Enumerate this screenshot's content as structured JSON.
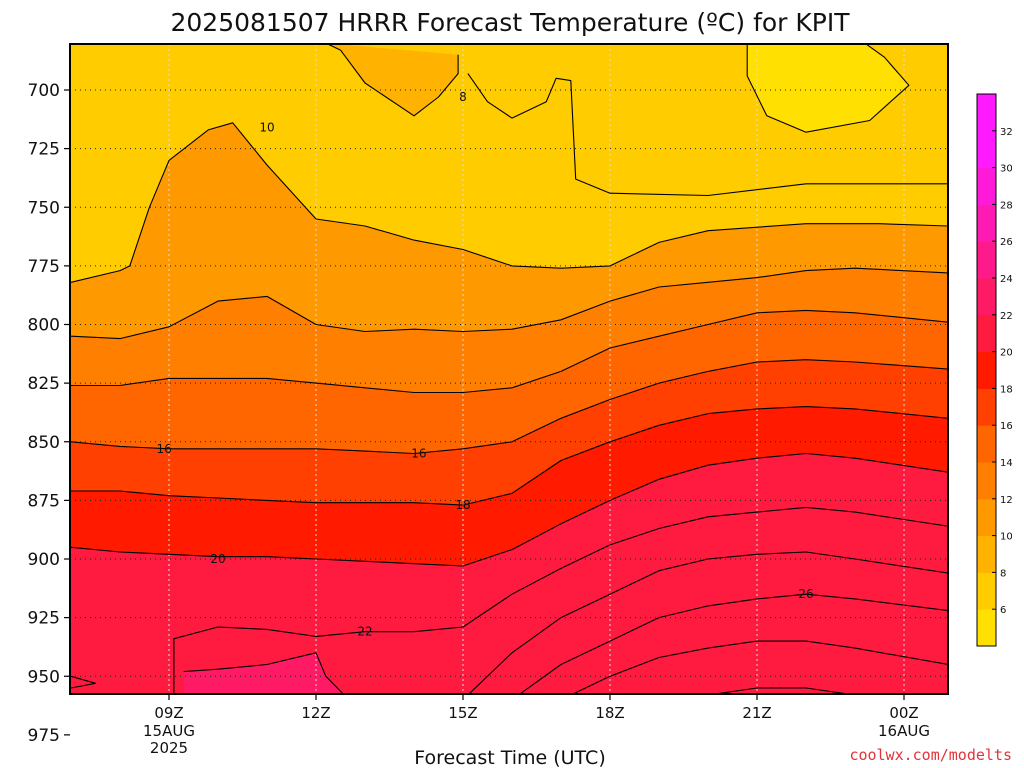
{
  "chart_data": {
    "type": "heatmap",
    "title": "2025081507 HRRR Forecast Temperature (ºC) for KPIT",
    "xlabel": "Forecast Time (UTC)",
    "ylabel": "",
    "y_axis": {
      "orientation": "pressure, decreasing upward",
      "ylim": [
        987,
        680
      ],
      "ticks": [
        700,
        725,
        750,
        775,
        800,
        825,
        850,
        875,
        900,
        925,
        950,
        975
      ]
    },
    "x_axis": {
      "range_hours_from_09Z": [
        -2.0,
        15.9
      ],
      "ticks": [
        {
          "hour": 0,
          "label": "09Z",
          "sub": [
            "15AUG",
            "2025"
          ]
        },
        {
          "hour": 3,
          "label": "12Z",
          "sub": []
        },
        {
          "hour": 6,
          "label": "15Z",
          "sub": []
        },
        {
          "hour": 9,
          "label": "18Z",
          "sub": []
        },
        {
          "hour": 12,
          "label": "21Z",
          "sub": []
        },
        {
          "hour": 15,
          "label": "00Z",
          "sub": [
            "16AUG"
          ]
        }
      ]
    },
    "colorbar": {
      "tick_labels": [
        "6",
        "8",
        "10",
        "12",
        "14",
        "16",
        "18",
        "20",
        "22",
        "24",
        "26",
        "28",
        "30",
        "32"
      ],
      "levels": [
        {
          "min": 4,
          "max": 6,
          "color": "#ffe000"
        },
        {
          "min": 6,
          "max": 8,
          "color": "#ffcc00"
        },
        {
          "min": 8,
          "max": 10,
          "color": "#ffb300"
        },
        {
          "min": 10,
          "max": 12,
          "color": "#ff9900"
        },
        {
          "min": 12,
          "max": 14,
          "color": "#ff7f00"
        },
        {
          "min": 14,
          "max": 16,
          "color": "#ff6600"
        },
        {
          "min": 16,
          "max": 18,
          "color": "#ff4000"
        },
        {
          "min": 18,
          "max": 20,
          "color": "#ff1a00"
        },
        {
          "min": 20,
          "max": 22,
          "color": "#ff1a40"
        },
        {
          "min": 22,
          "max": 24,
          "color": "#ff1a66"
        },
        {
          "min": 24,
          "max": 26,
          "color": "#ff1a8c"
        },
        {
          "min": 26,
          "max": 28,
          "color": "#ff1ab3"
        },
        {
          "min": 28,
          "max": 30,
          "color": "#ff1ad9"
        },
        {
          "min": 30,
          "max": 32,
          "color": "#ff1aff"
        },
        {
          "min": 32,
          "max": 34,
          "color": "#ff1aff"
        }
      ]
    },
    "contour_labels": [
      {
        "value": "10",
        "hour": 2.0,
        "p": 716
      },
      {
        "value": "8",
        "hour": 6.0,
        "p": 703
      },
      {
        "value": "16",
        "hour": -0.1,
        "p": 853
      },
      {
        "value": "16",
        "hour": 5.1,
        "p": 855
      },
      {
        "value": "18",
        "hour": 6.0,
        "p": 877
      },
      {
        "value": "20",
        "hour": 1.0,
        "p": 900
      },
      {
        "value": "22",
        "hour": 4.0,
        "p": 931
      },
      {
        "value": "26",
        "hour": 13.0,
        "p": 915
      },
      {
        "value": "20",
        "hour": 1.0,
        "p": 970
      }
    ],
    "contours": [
      {
        "level": 8,
        "points": [
          [
            5.9,
            685
          ],
          [
            5.9,
            693
          ],
          [
            5.5,
            703
          ],
          [
            5.0,
            711
          ],
          [
            4.0,
            697
          ],
          [
            3.5,
            683
          ],
          [
            3.2,
            680
          ]
        ]
      },
      {
        "level": 8,
        "points": [
          [
            6.1,
            693
          ],
          [
            6.5,
            705
          ],
          [
            7.0,
            712
          ],
          [
            7.7,
            705
          ],
          [
            7.9,
            695
          ],
          [
            8.2,
            696
          ],
          [
            8.3,
            738
          ],
          [
            9.0,
            744
          ],
          [
            11.0,
            745
          ],
          [
            13.0,
            740
          ],
          [
            15.9,
            740
          ]
        ]
      },
      {
        "level": 6,
        "points": [
          [
            11.8,
            680
          ],
          [
            11.8,
            694
          ],
          [
            12.2,
            711
          ],
          [
            13.0,
            718
          ],
          [
            14.3,
            713
          ],
          [
            15.1,
            698
          ],
          [
            14.6,
            686
          ],
          [
            14.2,
            680
          ]
        ]
      },
      {
        "level": 10,
        "points": [
          [
            -2.0,
            782
          ],
          [
            -1.0,
            777
          ],
          [
            -0.8,
            775
          ],
          [
            -0.4,
            750
          ],
          [
            0.0,
            730
          ],
          [
            0.8,
            717
          ],
          [
            1.3,
            714
          ],
          [
            2.0,
            732
          ],
          [
            3.0,
            755
          ],
          [
            4.0,
            758
          ],
          [
            5.0,
            764
          ],
          [
            6.0,
            768
          ],
          [
            7.0,
            775
          ],
          [
            8.0,
            776
          ],
          [
            9.0,
            775
          ],
          [
            10.0,
            765
          ],
          [
            11.0,
            760
          ],
          [
            13.0,
            757
          ],
          [
            14.5,
            757
          ],
          [
            15.9,
            758
          ]
        ]
      },
      {
        "level": 12,
        "points": [
          [
            -2.0,
            805
          ],
          [
            -1.0,
            806
          ],
          [
            0.0,
            801
          ],
          [
            1.0,
            790
          ],
          [
            2.0,
            788
          ],
          [
            3.0,
            800
          ],
          [
            4.0,
            803
          ],
          [
            5.0,
            802
          ],
          [
            6.0,
            803
          ],
          [
            7.0,
            802
          ],
          [
            8.0,
            798
          ],
          [
            9.0,
            790
          ],
          [
            10.0,
            784
          ],
          [
            11.0,
            782
          ],
          [
            12.0,
            780
          ],
          [
            13.0,
            777
          ],
          [
            14.0,
            776
          ],
          [
            15.9,
            778
          ]
        ]
      },
      {
        "level": 14,
        "points": [
          [
            -2.0,
            826
          ],
          [
            -1.0,
            826
          ],
          [
            0.0,
            823
          ],
          [
            1.0,
            823
          ],
          [
            2.0,
            823
          ],
          [
            3.0,
            825
          ],
          [
            4.0,
            827
          ],
          [
            5.0,
            829
          ],
          [
            6.0,
            829
          ],
          [
            7.0,
            827
          ],
          [
            8.0,
            820
          ],
          [
            9.0,
            810
          ],
          [
            10.0,
            805
          ],
          [
            11.0,
            800
          ],
          [
            12.0,
            795
          ],
          [
            13.0,
            794
          ],
          [
            14.0,
            795
          ],
          [
            15.9,
            799
          ]
        ]
      },
      {
        "level": 16,
        "points": [
          [
            -2.0,
            850
          ],
          [
            -1.0,
            852
          ],
          [
            0.0,
            853
          ],
          [
            1.0,
            853
          ],
          [
            2.0,
            853
          ],
          [
            3.0,
            853
          ],
          [
            4.0,
            854
          ],
          [
            5.0,
            855
          ],
          [
            6.0,
            853
          ],
          [
            7.0,
            850
          ],
          [
            8.0,
            840
          ],
          [
            9.0,
            832
          ],
          [
            10.0,
            825
          ],
          [
            11.0,
            820
          ],
          [
            12.0,
            816
          ],
          [
            13.0,
            815
          ],
          [
            14.0,
            816
          ],
          [
            15.9,
            819
          ]
        ]
      },
      {
        "level": 18,
        "points": [
          [
            -2.0,
            871
          ],
          [
            -1.0,
            871
          ],
          [
            0.0,
            873
          ],
          [
            1.0,
            874
          ],
          [
            2.0,
            875
          ],
          [
            3.0,
            876
          ],
          [
            4.0,
            876
          ],
          [
            5.0,
            876
          ],
          [
            6.0,
            877
          ],
          [
            7.0,
            872
          ],
          [
            8.0,
            858
          ],
          [
            9.0,
            850
          ],
          [
            10.0,
            843
          ],
          [
            11.0,
            838
          ],
          [
            12.0,
            836
          ],
          [
            13.0,
            835
          ],
          [
            14.0,
            836
          ],
          [
            15.9,
            840
          ]
        ]
      },
      {
        "level": 20,
        "points": [
          [
            -2.0,
            895
          ],
          [
            -1.0,
            897
          ],
          [
            0.0,
            898
          ],
          [
            1.0,
            899
          ],
          [
            2.0,
            899
          ],
          [
            3.0,
            900
          ],
          [
            4.0,
            901
          ],
          [
            5.0,
            902
          ],
          [
            6.0,
            903
          ],
          [
            7.0,
            896
          ],
          [
            8.0,
            885
          ],
          [
            9.0,
            875
          ],
          [
            10.0,
            866
          ],
          [
            11.0,
            860
          ],
          [
            12.0,
            857
          ],
          [
            13.0,
            855
          ],
          [
            14.0,
            857
          ],
          [
            15.9,
            863
          ]
        ]
      },
      {
        "level": 22,
        "points": [
          [
            -2.0,
            955
          ],
          [
            -1.5,
            953
          ],
          [
            -2.0,
            950
          ]
        ]
      },
      {
        "level": 22,
        "points": [
          [
            0.1,
            978
          ],
          [
            0.1,
            934
          ],
          [
            1.0,
            929
          ],
          [
            2.0,
            930
          ],
          [
            3.0,
            933
          ],
          [
            4.0,
            931
          ],
          [
            5.0,
            931
          ],
          [
            6.0,
            929
          ],
          [
            7.0,
            915
          ],
          [
            8.0,
            904
          ],
          [
            9.0,
            894
          ],
          [
            10.0,
            887
          ],
          [
            11.0,
            882
          ],
          [
            12.0,
            880
          ],
          [
            13.0,
            878
          ],
          [
            14.0,
            880
          ],
          [
            15.9,
            886
          ]
        ]
      },
      {
        "level": 22,
        "points": [
          [
            0.1,
            978
          ],
          [
            -1.0,
            977
          ],
          [
            -2.0,
            976
          ]
        ]
      },
      {
        "level": 24,
        "points": [
          [
            3.0,
            940
          ],
          [
            2.0,
            945
          ],
          [
            1.0,
            947
          ],
          [
            0.3,
            948
          ]
        ]
      },
      {
        "level": 24,
        "points": [
          [
            3.0,
            940
          ],
          [
            3.2,
            950
          ],
          [
            4.0,
            967
          ],
          [
            4.8,
            980
          ],
          [
            5.0,
            987
          ]
        ]
      },
      {
        "level": 24,
        "points": [
          [
            5.6,
            987
          ],
          [
            6.0,
            960
          ],
          [
            7.0,
            940
          ],
          [
            8.0,
            925
          ],
          [
            9.0,
            915
          ],
          [
            10.0,
            905
          ],
          [
            11.0,
            900
          ],
          [
            12.0,
            898
          ],
          [
            13.0,
            897
          ],
          [
            14.0,
            900
          ],
          [
            15.9,
            906
          ]
        ]
      },
      {
        "level": 26,
        "points": [
          [
            6.2,
            987
          ],
          [
            7.0,
            960
          ],
          [
            8.0,
            945
          ],
          [
            9.0,
            935
          ],
          [
            10.0,
            925
          ],
          [
            11.0,
            920
          ],
          [
            12.0,
            917
          ],
          [
            13.0,
            915
          ],
          [
            14.0,
            917
          ],
          [
            15.9,
            922
          ]
        ]
      },
      {
        "level": 28,
        "points": [
          [
            7.0,
            980
          ],
          [
            8.0,
            960
          ],
          [
            9.0,
            950
          ],
          [
            10.0,
            942
          ],
          [
            11.0,
            938
          ],
          [
            12.0,
            935
          ],
          [
            13.0,
            935
          ],
          [
            14.0,
            938
          ],
          [
            15.9,
            945
          ]
        ]
      },
      {
        "level": 30,
        "points": [
          [
            8.5,
            987
          ],
          [
            9.0,
            975
          ],
          [
            10.0,
            965
          ],
          [
            11.0,
            958
          ],
          [
            12.0,
            955
          ],
          [
            13.0,
            955
          ],
          [
            14.0,
            958
          ],
          [
            15.9,
            968
          ]
        ]
      },
      {
        "level": 32,
        "points": [
          [
            10.0,
            987
          ],
          [
            11.0,
            978
          ],
          [
            12.0,
            971
          ],
          [
            13.0,
            970
          ],
          [
            14.0,
            972
          ],
          [
            15.2,
            983
          ],
          [
            15.9,
            987
          ]
        ]
      },
      {
        "level": 20,
        "points": [
          [
            -2.0,
            985
          ],
          [
            -1.0,
            982
          ],
          [
            0.0,
            980
          ],
          [
            1.0,
            978
          ],
          [
            2.0,
            980
          ],
          [
            3.0,
            983
          ]
        ]
      }
    ],
    "ground_color": "#a0522d",
    "credit": "coolwx.com/modelts"
  }
}
